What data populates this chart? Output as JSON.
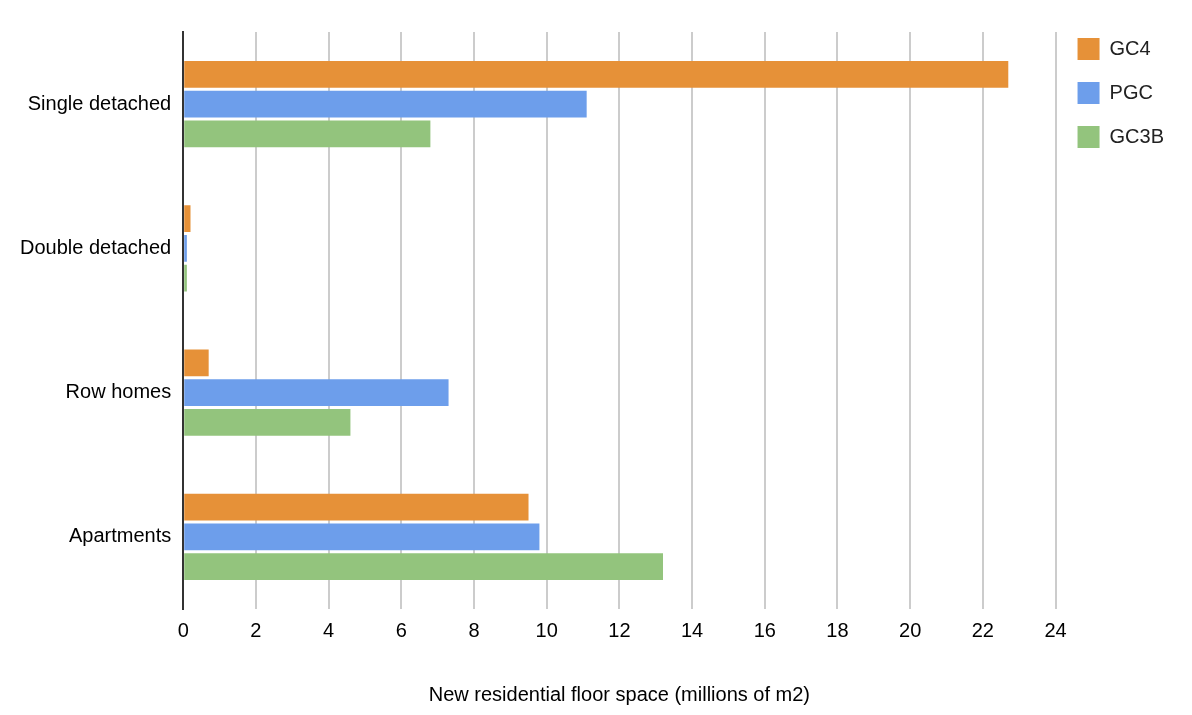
{
  "chart_data": {
    "type": "bar",
    "orientation": "horizontal",
    "xlabel": "New residential floor space (millions of m2)",
    "categories": [
      "Single detached",
      "Double detached",
      "Row homes",
      "Apartments"
    ],
    "series": [
      {
        "name": "GC4",
        "color": "#e69138",
        "values": [
          22.7,
          0.2,
          0.7,
          9.5
        ]
      },
      {
        "name": "PGC",
        "color": "#6d9eeb",
        "values": [
          11.1,
          0.1,
          7.3,
          9.8
        ]
      },
      {
        "name": "GC3B",
        "color": "#93c47d",
        "values": [
          6.8,
          0.1,
          4.6,
          13.2
        ]
      }
    ],
    "xlim": [
      0,
      24
    ],
    "xticks": [
      0,
      2,
      4,
      6,
      8,
      10,
      12,
      14,
      16,
      18,
      20,
      22,
      24
    ],
    "grid": "x",
    "legend": "top right"
  }
}
